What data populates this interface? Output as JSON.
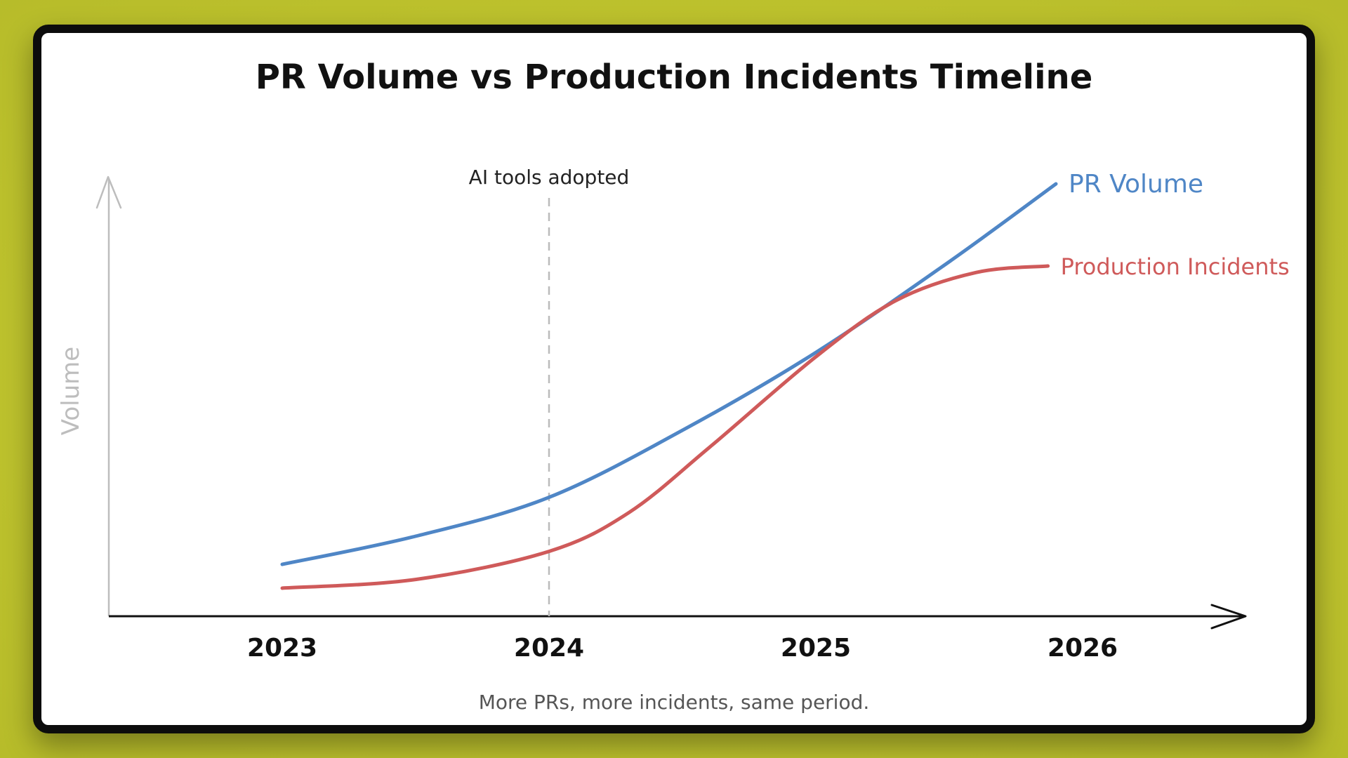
{
  "chart_data": {
    "type": "line",
    "title": "PR Volume vs Production Incidents Timeline",
    "ylabel": "Volume",
    "xlabel": "",
    "x_ticks": [
      "2023",
      "2024",
      "2025",
      "2026"
    ],
    "xlim": [
      2022.35,
      2026.6
    ],
    "ylim": [
      0,
      100
    ],
    "grid": false,
    "axis_ticks_y": false,
    "series": [
      {
        "name": "PR Volume",
        "color": "#4f86c6",
        "x": [
          2023.0,
          2023.5,
          2024.0,
          2024.5,
          2025.0,
          2025.5,
          2025.9
        ],
        "y": [
          12.0,
          18.5,
          27.5,
          43.0,
          61.0,
          82.0,
          100.0
        ]
      },
      {
        "name": "Production Incidents",
        "color": "#cf5a5a",
        "x": [
          2023.0,
          2023.5,
          2024.0,
          2024.3,
          2024.6,
          2025.0,
          2025.3,
          2025.6,
          2025.87
        ],
        "y": [
          6.5,
          8.5,
          15.0,
          24.0,
          39.0,
          60.0,
          73.0,
          79.5,
          81.0
        ]
      }
    ],
    "annotations": [
      {
        "x": 2024.0,
        "label": "AI tools adopted",
        "style": "dashed-vertical"
      }
    ],
    "caption": "More PRs, more incidents, same period."
  }
}
